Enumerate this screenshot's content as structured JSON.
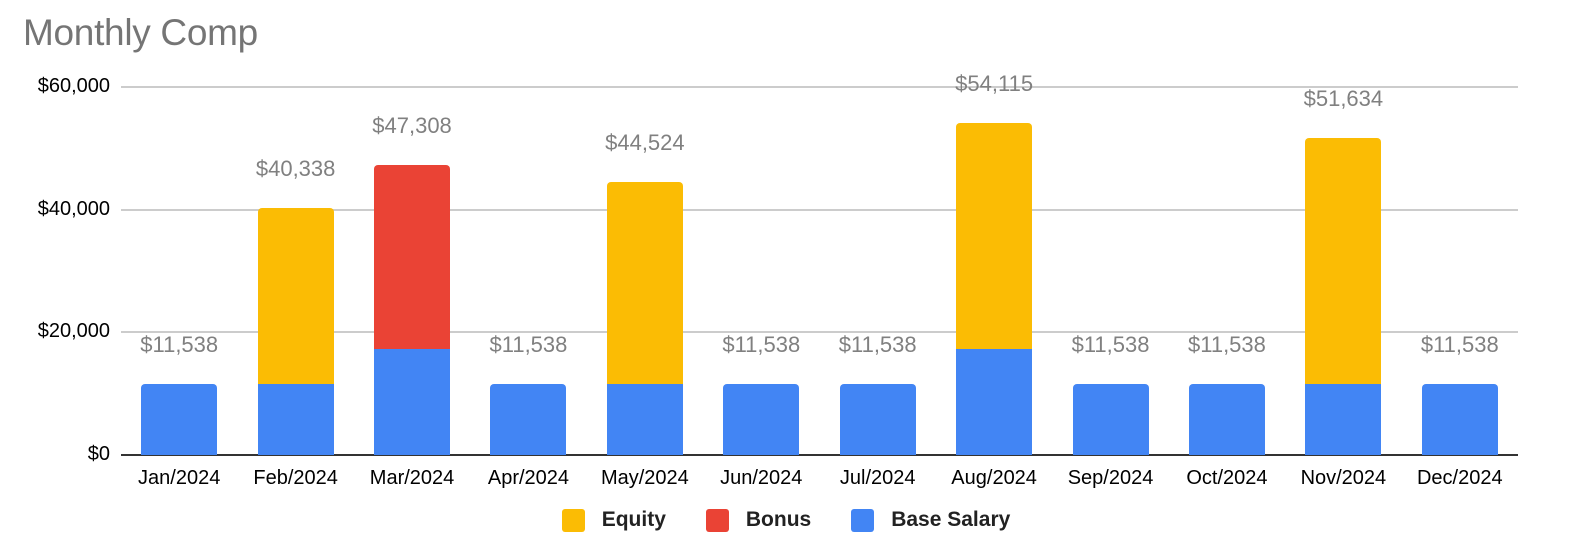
{
  "chart_data": {
    "type": "bar",
    "stacked": true,
    "title": "Monthly Comp",
    "xlabel": "",
    "ylabel": "",
    "ylim": [
      0,
      60000
    ],
    "yticks": [
      0,
      20000,
      40000,
      60000
    ],
    "ytick_labels": [
      "$0",
      "$20,000",
      "$40,000",
      "$60,000"
    ],
    "grid": true,
    "legend_position": "bottom",
    "categories": [
      "Jan/2024",
      "Feb/2024",
      "Mar/2024",
      "Apr/2024",
      "May/2024",
      "Jun/2024",
      "Jul/2024",
      "Aug/2024",
      "Sep/2024",
      "Oct/2024",
      "Nov/2024",
      "Dec/2024"
    ],
    "series": [
      {
        "name": "Base Salary",
        "color": "#4285F4",
        "values": [
          11538,
          11538,
          17308,
          11538,
          11538,
          11538,
          11538,
          17307,
          11538,
          11538,
          11538,
          11538
        ]
      },
      {
        "name": "Bonus",
        "color": "#EA4335",
        "values": [
          0,
          0,
          30000,
          0,
          0,
          0,
          0,
          0,
          0,
          0,
          0,
          0
        ]
      },
      {
        "name": "Equity",
        "color": "#FBBC04",
        "values": [
          0,
          28800,
          0,
          0,
          32986,
          0,
          0,
          36808,
          0,
          0,
          40096,
          0
        ]
      }
    ],
    "totals": [
      11538,
      40338,
      47308,
      11538,
      44524,
      11538,
      11538,
      54115,
      11538,
      11538,
      51634,
      11538
    ],
    "total_labels": [
      "$11,538",
      "$40,338",
      "$47,308",
      "$11,538",
      "$44,524",
      "$11,538",
      "$11,538",
      "$54,115",
      "$11,538",
      "$11,538",
      "$51,634",
      "$11,538"
    ],
    "legend": [
      "Equity",
      "Bonus",
      "Base Salary"
    ]
  },
  "legend": [
    {
      "label": "Equity",
      "color": "#FBBC04"
    },
    {
      "label": "Bonus",
      "color": "#EA4335"
    },
    {
      "label": "Base Salary",
      "color": "#4285F4"
    }
  ]
}
